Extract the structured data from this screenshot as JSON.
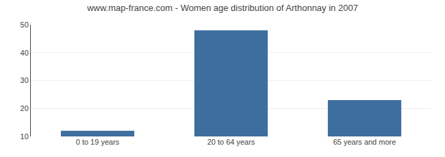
{
  "chart_data": {
    "type": "bar",
    "title": "www.map-france.com - Women age distribution of Arthonnay in 2007",
    "categories": [
      "0 to 19 years",
      "20 to 64 years",
      "65 years and more"
    ],
    "values": [
      12,
      48,
      23
    ],
    "color": "#3d6e9e",
    "ylim": [
      10,
      50
    ],
    "yticks": [
      10,
      20,
      30,
      40,
      50
    ],
    "grid": true
  }
}
